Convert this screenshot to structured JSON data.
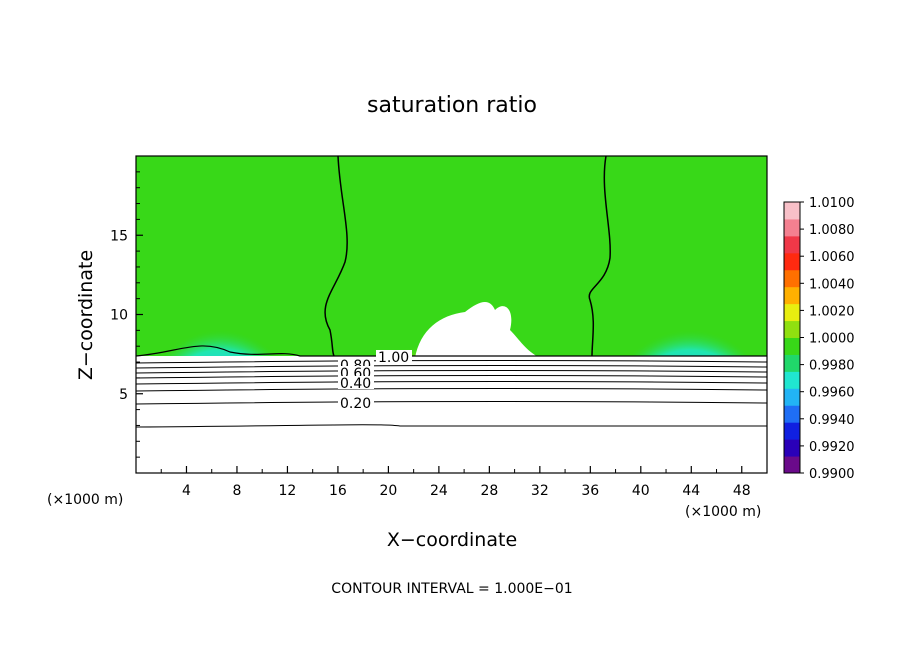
{
  "chart_data": {
    "type": "heatmap",
    "title": "saturation ratio",
    "xlabel": "X−coordinate",
    "ylabel": "Z−coordinate",
    "x_unit_left": "(×1000 m)",
    "x_unit_right": "(×1000 m)",
    "xlim": [
      0,
      50
    ],
    "ylim": [
      0,
      20
    ],
    "x_ticks": [
      "4",
      "8",
      "12",
      "16",
      "20",
      "24",
      "28",
      "32",
      "36",
      "40",
      "44",
      "48"
    ],
    "y_ticks": [
      "5",
      "10",
      "15"
    ],
    "colorbar": {
      "min": 0.99,
      "max": 1.01,
      "labels": [
        "1.0100",
        "1.0080",
        "1.0060",
        "1.0040",
        "1.0020",
        "1.0000",
        "0.9980",
        "0.9960",
        "0.9940",
        "0.9920",
        "0.9900"
      ],
      "colors": [
        "#6a0a8a",
        "#2a00b8",
        "#1020e0",
        "#1f6ef5",
        "#22b4f5",
        "#20e6d0",
        "#20d86a",
        "#38d818",
        "#90e010",
        "#e8ee10",
        "#ffb000",
        "#ff7000",
        "#ff2a10",
        "#f03848",
        "#f48090",
        "#f8c0c8"
      ]
    },
    "contour_labels": [
      "1.00",
      "0.80",
      "0.60",
      "0.40",
      "0.20"
    ],
    "contour_interval": "CONTOUR INTERVAL = 1.000E−01"
  }
}
